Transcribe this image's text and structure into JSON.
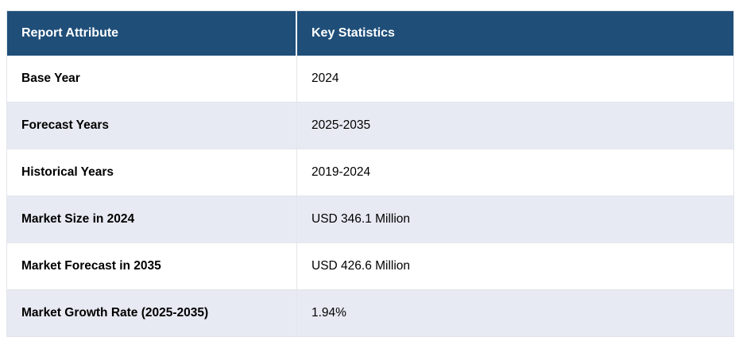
{
  "table": {
    "columns": [
      {
        "label": "Report Attribute"
      },
      {
        "label": "Key Statistics"
      }
    ],
    "rows": [
      {
        "attribute": "Base Year",
        "value": "2024"
      },
      {
        "attribute": "Forecast Years",
        "value": "2025-2035"
      },
      {
        "attribute": "Historical Years",
        "value": "2019-2024"
      },
      {
        "attribute": "Market Size in 2024",
        "value": "USD 346.1 Million"
      },
      {
        "attribute": "Market Forecast in 2035",
        "value": "USD 426.6 Million"
      },
      {
        "attribute": "Market Growth Rate (2025-2035)",
        "value": "1.94%"
      }
    ],
    "colors": {
      "header_bg": "#1f4e79",
      "header_text": "#ffffff",
      "row_bg": "#ffffff",
      "row_alt_bg": "#e8eaf3",
      "border": "#e2e5ea",
      "body_text": "#000000"
    }
  }
}
